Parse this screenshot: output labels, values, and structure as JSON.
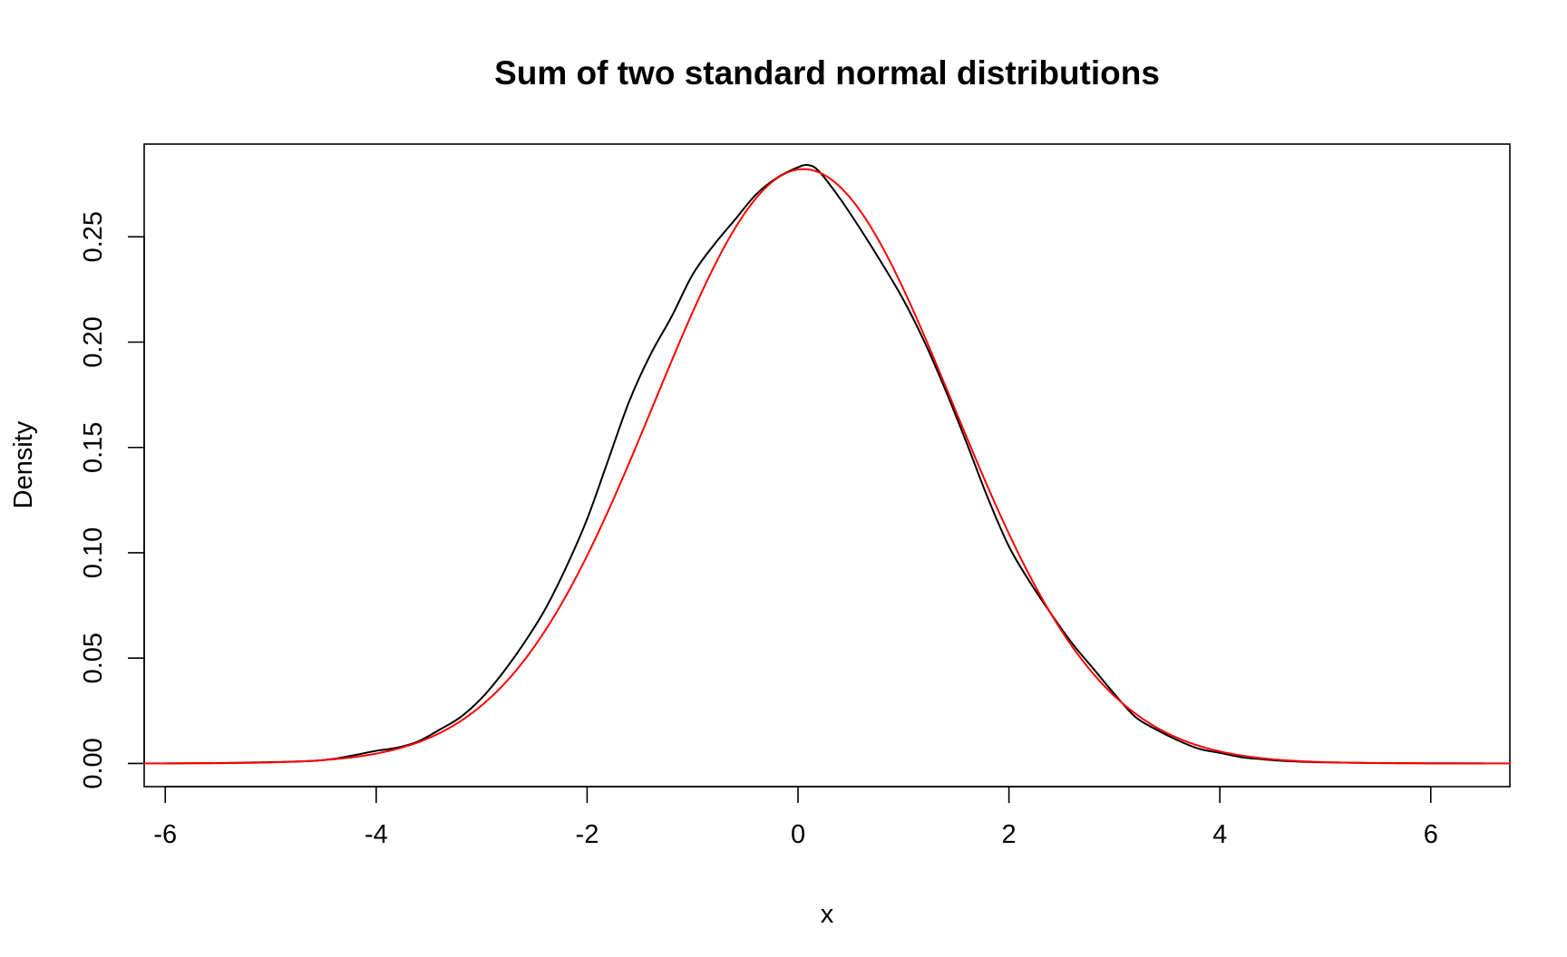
{
  "chart_data": {
    "type": "line",
    "title": "Sum of two standard normal distributions",
    "xlabel": "x",
    "ylabel": "Density",
    "xlim": [
      -6.2,
      6.75
    ],
    "ylim": [
      -0.011,
      0.294
    ],
    "x_ticks": [
      -6,
      -4,
      -2,
      0,
      2,
      4,
      6
    ],
    "x_tick_labels": [
      "-6",
      "-4",
      "-2",
      "0",
      "2",
      "4",
      "6"
    ],
    "y_ticks": [
      0.0,
      0.05,
      0.1,
      0.15,
      0.2,
      0.25
    ],
    "y_tick_labels": [
      "0.00",
      "0.05",
      "0.10",
      "0.15",
      "0.20",
      "0.25"
    ],
    "grid": false,
    "legend": "none",
    "series": [
      {
        "color": "#000000",
        "kind": "empirical-density",
        "x": [
          -6.0,
          -5.5,
          -5.0,
          -4.6,
          -4.4,
          -4.2,
          -4.0,
          -3.8,
          -3.6,
          -3.4,
          -3.2,
          -3.0,
          -2.8,
          -2.6,
          -2.4,
          -2.2,
          -2.0,
          -1.8,
          -1.6,
          -1.4,
          -1.2,
          -1.0,
          -0.8,
          -0.6,
          -0.4,
          -0.2,
          0.0,
          0.1,
          0.2,
          0.4,
          0.6,
          0.8,
          1.0,
          1.2,
          1.4,
          1.6,
          1.8,
          2.0,
          2.2,
          2.4,
          2.6,
          2.8,
          3.0,
          3.2,
          3.4,
          3.6,
          3.8,
          4.0,
          4.2,
          4.4,
          4.6,
          5.0,
          5.5,
          6.0,
          6.5
        ],
        "y": [
          0.0,
          0.0002,
          0.0006,
          0.0012,
          0.0022,
          0.004,
          0.006,
          0.0075,
          0.0105,
          0.016,
          0.022,
          0.031,
          0.043,
          0.057,
          0.073,
          0.093,
          0.116,
          0.144,
          0.172,
          0.194,
          0.212,
          0.232,
          0.246,
          0.258,
          0.27,
          0.278,
          0.283,
          0.284,
          0.281,
          0.268,
          0.253,
          0.237,
          0.22,
          0.2,
          0.177,
          0.152,
          0.126,
          0.103,
          0.086,
          0.071,
          0.057,
          0.045,
          0.033,
          0.022,
          0.016,
          0.011,
          0.007,
          0.005,
          0.003,
          0.002,
          0.0012,
          0.0005,
          0.0002,
          0.0001,
          0.0
        ]
      },
      {
        "color": "#ff0000",
        "kind": "normal-density",
        "mean": 0.05,
        "sd": 1.414,
        "x_range": [
          -6.2,
          6.75
        ]
      }
    ]
  }
}
